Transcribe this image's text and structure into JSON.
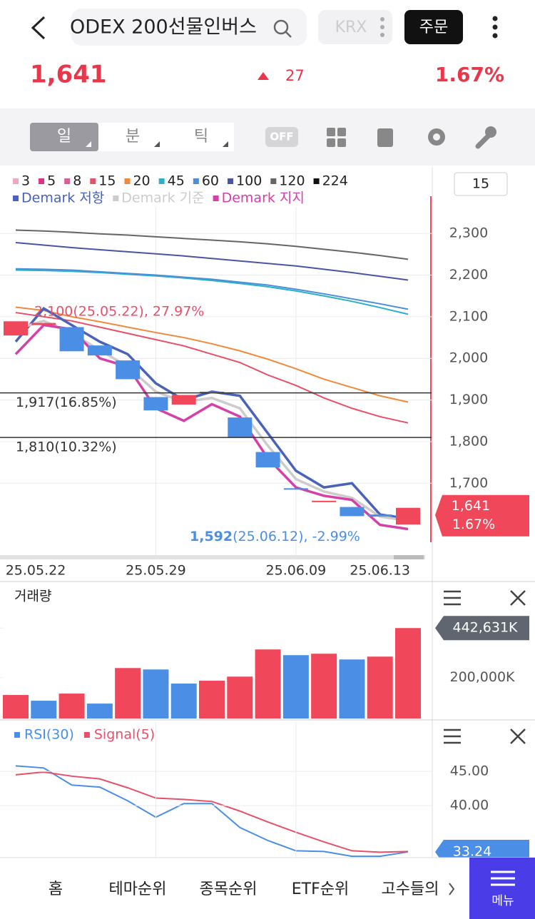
{
  "header": {
    "title": "ODEX 200선물인버스",
    "exchange": "KRX",
    "order": "주문"
  },
  "quote": {
    "price": "1,641",
    "change": "27",
    "rate": "1.67%"
  },
  "toolbar": {
    "periods": [
      "일",
      "분",
      "틱"
    ],
    "toggle": "OFF"
  },
  "chart_data": {
    "type": "candlestick",
    "categories": [
      "25.05.22",
      null,
      null,
      null,
      null,
      "25.05.29",
      null,
      null,
      null,
      null,
      "25.06.09",
      null,
      null,
      "25.06.13",
      null
    ],
    "open": [
      2055,
      2080,
      2075,
      2031,
      1995,
      1907,
      1889,
      1920,
      1858,
      1775,
      1688,
      1655,
      1643,
      1625,
      1601
    ],
    "close": [
      2089,
      2085,
      2017,
      2007,
      1950,
      1875,
      1912,
      1918,
      1810,
      1738,
      1685,
      1658,
      1621,
      1620,
      1641
    ],
    "up_color": "#f0475a",
    "down_color": "#4a8ee6",
    "ylim": [
      1524,
      2458
    ],
    "yticks": [
      {
        "value": 2300,
        "label": "2,300"
      },
      {
        "value": 2200,
        "label": "2,200"
      },
      {
        "value": 2100,
        "label": "2,100"
      },
      {
        "value": 2000,
        "label": "2,000"
      },
      {
        "value": 1900,
        "label": "1,900"
      },
      {
        "value": 1800,
        "label": "1,800"
      },
      {
        "value": 1700,
        "label": "1,700"
      }
    ],
    "period_box": "15",
    "legend": [
      {
        "name": "3",
        "color": "#f4a6c0"
      },
      {
        "name": "5",
        "color": "#e0308a"
      },
      {
        "name": "8",
        "color": "#e05a9a"
      },
      {
        "name": "15",
        "color": "#e8506a",
        "values": [
          2110,
          2100,
          2090,
          2075,
          2060,
          2045,
          2030,
          2010,
          1990,
          1960,
          1935,
          1905,
          1880,
          1860,
          1845
        ]
      },
      {
        "name": "20",
        "color": "#f08a3a",
        "values": [
          2123,
          2115,
          2100,
          2088,
          2075,
          2062,
          2050,
          2035,
          2018,
          1998,
          1975,
          1950,
          1930,
          1910,
          1895
        ]
      },
      {
        "name": "45",
        "color": "#2bb0c8",
        "values": [
          2212,
          2211,
          2209,
          2206,
          2202,
          2198,
          2193,
          2187,
          2180,
          2172,
          2162,
          2150,
          2137,
          2122,
          2106
        ]
      },
      {
        "name": "60",
        "color": "#4c8ed9",
        "values": [
          2215,
          2214,
          2212,
          2208,
          2204,
          2200,
          2195,
          2190,
          2183,
          2176,
          2166,
          2155,
          2143,
          2131,
          2118
        ]
      },
      {
        "name": "100",
        "color": "#4a55a2",
        "values": [
          2278,
          2272,
          2266,
          2261,
          2256,
          2251,
          2246,
          2240,
          2234,
          2228,
          2222,
          2214,
          2206,
          2197,
          2188
        ]
      },
      {
        "name": "120",
        "color": "#666666",
        "values": [
          2308,
          2306,
          2303,
          2299,
          2296,
          2292,
          2288,
          2284,
          2280,
          2275,
          2269,
          2262,
          2255,
          2247,
          2238
        ]
      },
      {
        "name": "224",
        "color": "#111111"
      },
      {
        "name": "Demark 저항",
        "color": "#4a62b8",
        "values": [
          2040,
          2120,
          2080,
          2040,
          2010,
          1940,
          1900,
          1920,
          1910,
          1820,
          1730,
          1690,
          1700,
          1625,
          1615
        ]
      },
      {
        "name": "Demark 기준",
        "color": "#cccccc",
        "values": [
          2070,
          2090,
          2060,
          2020,
          1980,
          1920,
          1895,
          1905,
          1880,
          1790,
          1710,
          1680,
          1665,
          1620,
          1610
        ]
      },
      {
        "name": "Demark 지지",
        "color": "#d63fa8",
        "values": [
          2010,
          2080,
          2070,
          2000,
          1980,
          1880,
          1850,
          1890,
          1860,
          1760,
          1690,
          1670,
          1660,
          1600,
          1590
        ]
      }
    ],
    "levels": [
      {
        "value": 1917,
        "label": "1,917(16.85%)"
      },
      {
        "value": 1810,
        "label": "1,810(10.32%)"
      }
    ],
    "high": {
      "value": 2100,
      "label": "2,100(25.05.22), 27.97%"
    },
    "low": {
      "value": 1592,
      "label": "1,592",
      "detail": "(25.06.12), -2.99%"
    },
    "current": {
      "value": 1641,
      "label": "1,641",
      "rate": "1.67%"
    },
    "volume": {
      "title": "거래량",
      "ylim": [
        0,
        660000
      ],
      "yticks": [
        {
          "value": 442631,
          "label": "442,631K"
        },
        {
          "value": 200000,
          "label": "200,000K"
        }
      ],
      "values": [
        115000,
        87000,
        122000,
        73000,
        247000,
        240000,
        171000,
        185000,
        205000,
        338000,
        310000,
        317000,
        289000,
        303000,
        442631
      ],
      "colors": [
        "#f0475a",
        "#4a8ee6",
        "#f0475a",
        "#4a8ee6",
        "#f0475a",
        "#4a8ee6",
        "#4a8ee6",
        "#f0475a",
        "#f0475a",
        "#f0475a",
        "#4a8ee6",
        "#f0475a",
        "#4a8ee6",
        "#f0475a",
        "#f0475a"
      ]
    },
    "rsi": {
      "ylim": [
        32.4,
        52.2
      ],
      "yticks": [
        {
          "value": 45,
          "label": "45.00"
        },
        {
          "value": 40,
          "label": "40.00"
        }
      ],
      "current": 33.24,
      "series": [
        {
          "name": "RSI(30)",
          "color": "#4a8ee6",
          "values": [
            45.8,
            45.5,
            43.0,
            42.7,
            40.7,
            38.3,
            40.3,
            40.3,
            36.8,
            34.9,
            33.4,
            33.3,
            32.6,
            32.6,
            33.24
          ]
        },
        {
          "name": "Signal(5)",
          "color": "#e8506a",
          "values": [
            44.5,
            44.9,
            44.3,
            43.9,
            42.6,
            41.1,
            40.9,
            40.6,
            39.2,
            37.6,
            36.1,
            34.7,
            33.4,
            33.2,
            33.3
          ]
        }
      ]
    }
  },
  "nav": {
    "items": [
      "홈",
      "테마순위",
      "종목순위",
      "ETF순위",
      "고수들의"
    ],
    "menu": "메뉴"
  }
}
